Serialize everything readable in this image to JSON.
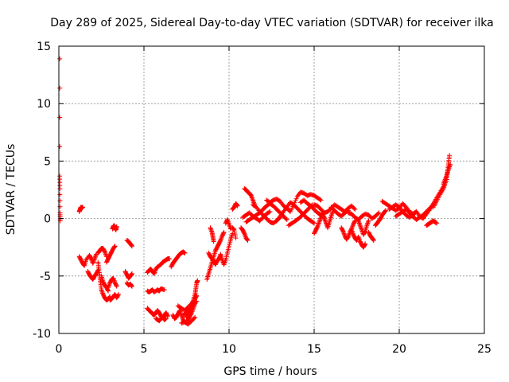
{
  "chart_data": {
    "type": "scatter",
    "title": "Day 289 of 2025, Sidereal Day-to-day VTEC variation (SDTVAR) for receiver ilka",
    "xlabel": "GPS time / hours",
    "ylabel": "SDTVAR / TECUs",
    "xlim": [
      0,
      25
    ],
    "ylim": [
      -10,
      15
    ],
    "xticks": [
      0,
      5,
      10,
      15,
      20,
      25
    ],
    "yticks": [
      -10,
      -5,
      0,
      5,
      10,
      15
    ],
    "grid": true,
    "marker": "plus",
    "color": "#ff0000",
    "segments": [
      {
        "x": [
          0.05,
          0.05,
          0.06,
          0.07,
          0.08
        ],
        "y": [
          13.9,
          3.7,
          2.6,
          0.5,
          -0.2
        ]
      },
      {
        "x": [
          1.2,
          1.25,
          1.3,
          1.35,
          1.4
        ],
        "y": [
          0.6,
          0.8,
          1.0,
          0.9,
          1.0
        ]
      },
      {
        "x": [
          1.2,
          1.3,
          1.4,
          1.5,
          1.6,
          1.8,
          1.9,
          2.0,
          2.1,
          2.2
        ],
        "y": [
          -3.3,
          -3.6,
          -3.9,
          -4.1,
          -3.6,
          -3.2,
          -3.5,
          -3.9,
          -3.5,
          -3.1
        ]
      },
      {
        "x": [
          1.7,
          1.8,
          1.9,
          2.0,
          2.1,
          2.2,
          2.3
        ],
        "y": [
          -4.6,
          -4.9,
          -5.1,
          -5.3,
          -5.0,
          -4.8,
          -4.5
        ]
      },
      {
        "x": [
          2.3,
          2.4,
          2.5,
          2.6,
          2.7,
          2.8
        ],
        "y": [
          -3.0,
          -2.8,
          -2.6,
          -2.6,
          -2.9,
          -3.3
        ]
      },
      {
        "x": [
          2.3,
          2.35,
          2.4,
          2.45,
          2.5,
          2.6,
          2.7,
          2.8,
          2.9,
          3.0
        ],
        "y": [
          -3.8,
          -4.4,
          -5.0,
          -5.6,
          -6.2,
          -6.6,
          -6.9,
          -7.1,
          -7.0,
          -6.8
        ]
      },
      {
        "x": [
          2.5,
          2.6,
          2.7,
          2.8,
          2.9
        ],
        "y": [
          -5.0,
          -5.5,
          -5.8,
          -6.0,
          -6.3
        ]
      },
      {
        "x": [
          2.9,
          3.0,
          3.1,
          3.2,
          3.3,
          3.4
        ],
        "y": [
          -6.0,
          -5.6,
          -5.3,
          -5.2,
          -5.6,
          -5.9
        ]
      },
      {
        "x": [
          3.0,
          3.1,
          3.2,
          3.3,
          3.4,
          3.5
        ],
        "y": [
          -7.1,
          -7.0,
          -6.8,
          -6.6,
          -6.9,
          -6.6
        ]
      },
      {
        "x": [
          2.8,
          2.9,
          3.0,
          3.1,
          3.2,
          3.3
        ],
        "y": [
          -3.8,
          -3.5,
          -3.2,
          -2.9,
          -2.6,
          -2.4
        ]
      },
      {
        "x": [
          3.15,
          3.2,
          3.25,
          3.3,
          3.35,
          3.4
        ],
        "y": [
          -0.9,
          -0.7,
          -0.6,
          -0.8,
          -1.0,
          -0.7
        ]
      },
      {
        "x": [
          4.0,
          4.1,
          4.2,
          4.3
        ],
        "y": [
          -1.9,
          -2.0,
          -2.2,
          -2.4
        ]
      },
      {
        "x": [
          3.9,
          4.0,
          4.1,
          4.2,
          4.3
        ],
        "y": [
          -4.6,
          -4.9,
          -5.2,
          -5.0,
          -4.8
        ]
      },
      {
        "x": [
          4.0,
          4.1,
          4.2,
          4.3
        ],
        "y": [
          -5.6,
          -5.8,
          -5.7,
          -5.9
        ]
      },
      {
        "x": [
          5.2,
          5.3,
          5.4,
          5.5,
          5.6,
          5.7,
          5.8,
          6.0,
          6.1,
          6.2,
          6.3,
          6.4,
          6.5
        ],
        "y": [
          -4.7,
          -4.5,
          -4.4,
          -4.6,
          -4.8,
          -4.4,
          -4.2,
          -4.0,
          -3.8,
          -3.7,
          -3.6,
          -3.5,
          -3.5
        ]
      },
      {
        "x": [
          5.2,
          5.3,
          5.4,
          5.5,
          5.6,
          5.8,
          5.9,
          6.0,
          6.2
        ],
        "y": [
          -6.3,
          -6.4,
          -6.3,
          -6.2,
          -6.4,
          -6.2,
          -6.3,
          -6.1,
          -6.2
        ]
      },
      {
        "x": [
          5.2,
          5.3,
          5.4,
          5.5,
          5.6,
          5.7,
          5.8,
          5.9,
          6.0,
          6.1,
          6.2,
          6.3,
          6.4
        ],
        "y": [
          -7.8,
          -8.0,
          -8.1,
          -8.3,
          -8.4,
          -8.2,
          -8.0,
          -8.2,
          -8.5,
          -8.6,
          -8.4,
          -8.2,
          -8.5
        ]
      },
      {
        "x": [
          5.7,
          5.8,
          5.9,
          6.0,
          6.1,
          6.2,
          6.3
        ],
        "y": [
          -8.7,
          -8.8,
          -8.9,
          -8.7,
          -8.6,
          -8.8,
          -8.7
        ]
      },
      {
        "x": [
          6.6,
          6.7,
          6.8,
          6.9,
          7.0,
          7.1,
          7.2,
          7.3,
          7.4
        ],
        "y": [
          -4.2,
          -3.9,
          -3.7,
          -3.5,
          -3.3,
          -3.1,
          -3.0,
          -2.9,
          -3.0
        ]
      },
      {
        "x": [
          6.7,
          6.8,
          6.9,
          7.0,
          7.1,
          7.2,
          7.3,
          7.4,
          7.5,
          7.6,
          7.7,
          7.8,
          7.9,
          8.0
        ],
        "y": [
          -8.4,
          -8.7,
          -8.6,
          -8.3,
          -8.0,
          -8.4,
          -8.8,
          -9.0,
          -9.1,
          -8.8,
          -8.5,
          -8.2,
          -7.8,
          -7.4
        ]
      },
      {
        "x": [
          7.0,
          7.2,
          7.4,
          7.6,
          7.8,
          8.0,
          8.1
        ],
        "y": [
          -7.6,
          -7.8,
          -8.0,
          -7.7,
          -7.4,
          -7.0,
          -6.7
        ]
      },
      {
        "x": [
          7.3,
          7.5,
          7.7,
          7.9,
          8.1
        ],
        "y": [
          -8.4,
          -8.2,
          -7.9,
          -7.5,
          -7.2
        ]
      },
      {
        "x": [
          7.5,
          7.6,
          7.7,
          7.8,
          7.9,
          8.0,
          8.05,
          8.1,
          8.15
        ],
        "y": [
          -8.6,
          -8.4,
          -8.1,
          -7.6,
          -7.1,
          -6.6,
          -6.1,
          -5.6,
          -5.4
        ]
      },
      {
        "x": [
          7.2,
          7.4,
          7.6,
          7.8,
          8.0
        ],
        "y": [
          -9.1,
          -9.0,
          -9.2,
          -8.9,
          -8.6
        ]
      },
      {
        "x": [
          8.7,
          8.8,
          8.9,
          9.0,
          9.1,
          9.2,
          9.3,
          9.4,
          9.5,
          9.6,
          9.7
        ],
        "y": [
          -5.3,
          -4.8,
          -4.3,
          -3.8,
          -3.3,
          -2.8,
          -2.5,
          -2.2,
          -1.9,
          -1.5,
          -1.2
        ]
      },
      {
        "x": [
          8.8,
          8.9,
          9.0,
          9.1,
          9.2,
          9.3,
          9.4,
          9.5
        ],
        "y": [
          -3.0,
          -3.3,
          -3.5,
          -3.7,
          -4.0,
          -3.7,
          -3.5,
          -3.2
        ]
      },
      {
        "x": [
          8.9,
          9.0,
          9.05,
          9.1
        ],
        "y": [
          -0.8,
          -1.2,
          -1.6,
          -2.0
        ]
      },
      {
        "x": [
          9.5,
          9.6,
          9.7,
          9.8,
          9.9,
          10.0,
          10.1,
          10.2
        ],
        "y": [
          -3.1,
          -3.6,
          -4.0,
          -3.6,
          -3.0,
          -2.4,
          -1.8,
          -1.3
        ]
      },
      {
        "x": [
          9.8,
          9.9,
          10.0,
          10.1
        ],
        "y": [
          -0.4,
          -0.1,
          -0.5,
          -0.9
        ]
      },
      {
        "x": [
          10.2,
          10.3,
          10.4,
          10.5
        ],
        "y": [
          0.8,
          1.0,
          1.3,
          1.1
        ]
      },
      {
        "x": [
          10.2,
          10.3,
          10.4
        ],
        "y": [
          -0.8,
          -1.0,
          -1.7
        ]
      },
      {
        "x": [
          10.7,
          10.8,
          10.9,
          11.0,
          11.1
        ],
        "y": [
          -0.8,
          -1.0,
          -1.3,
          -1.7,
          -1.9
        ]
      },
      {
        "x": [
          10.9,
          11.0,
          11.1,
          11.2,
          11.3,
          11.4,
          11.5
        ],
        "y": [
          2.6,
          2.5,
          2.3,
          2.2,
          2.0,
          1.6,
          1.2
        ]
      },
      {
        "x": [
          10.8,
          11.0,
          11.2,
          11.4,
          11.6,
          11.8,
          12.0,
          12.2,
          12.4
        ],
        "y": [
          0.1,
          0.3,
          0.5,
          0.2,
          0.0,
          -0.2,
          0.1,
          0.4,
          0.6
        ]
      },
      {
        "x": [
          11.0,
          11.2,
          11.4,
          11.6,
          11.8,
          12.0,
          12.2,
          12.4,
          12.6,
          12.8,
          13.0,
          13.2,
          13.4
        ],
        "y": [
          -0.3,
          -0.1,
          0.1,
          0.3,
          0.5,
          0.8,
          1.1,
          1.3,
          1.1,
          0.8,
          0.5,
          0.2,
          -0.1
        ]
      },
      {
        "x": [
          11.4,
          11.6,
          11.8,
          12.0,
          12.2,
          12.4,
          12.6,
          12.8,
          13.0
        ],
        "y": [
          1.2,
          1.0,
          0.6,
          0.3,
          0.0,
          -0.3,
          -0.4,
          -0.2,
          0.1
        ]
      },
      {
        "x": [
          12.2,
          12.4,
          12.6,
          12.8,
          13.0,
          13.2,
          13.4,
          13.6,
          13.8,
          14.0,
          14.2,
          14.4,
          14.6,
          14.8,
          15.0,
          15.2,
          15.4
        ],
        "y": [
          1.6,
          1.4,
          1.6,
          1.7,
          1.5,
          1.1,
          0.9,
          0.6,
          1.2,
          1.9,
          2.3,
          2.2,
          2.0,
          2.1,
          2.0,
          1.8,
          1.6
        ]
      },
      {
        "x": [
          12.8,
          13.0,
          13.2,
          13.4,
          13.6,
          13.8,
          14.0,
          14.2,
          14.4,
          14.6,
          14.8,
          15.0
        ],
        "y": [
          -0.2,
          0.2,
          0.6,
          1.0,
          1.4,
          1.2,
          0.9,
          0.6,
          0.3,
          0.0,
          -0.2,
          -0.4
        ]
      },
      {
        "x": [
          13.5,
          13.7,
          13.9,
          14.1,
          14.3,
          14.5,
          14.7,
          14.9
        ],
        "y": [
          -0.6,
          -0.4,
          -0.2,
          0.0,
          0.3,
          0.6,
          0.9,
          1.2
        ]
      },
      {
        "x": [
          14.2,
          14.4,
          14.6,
          14.8,
          15.0,
          15.2,
          15.4,
          15.6
        ],
        "y": [
          1.4,
          1.6,
          1.3,
          1.1,
          0.8,
          0.5,
          0.3,
          0.1
        ]
      },
      {
        "x": [
          15.0,
          15.1,
          15.2,
          15.3,
          15.4,
          15.5
        ],
        "y": [
          -1.3,
          -1.0,
          -0.7,
          -0.3,
          0.1,
          0.5
        ]
      },
      {
        "x": [
          15.0,
          15.2,
          15.4,
          15.6,
          15.8,
          16.0,
          16.2,
          16.4,
          16.6,
          16.8,
          17.0,
          17.2,
          17.4
        ],
        "y": [
          1.2,
          1.1,
          0.8,
          0.5,
          0.6,
          0.9,
          1.2,
          1.0,
          0.8,
          0.6,
          0.9,
          1.1,
          0.8
        ]
      },
      {
        "x": [
          15.5,
          15.6,
          15.7,
          15.8,
          15.9,
          16.0,
          16.1
        ],
        "y": [
          0.4,
          0.0,
          -0.4,
          -0.8,
          -0.3,
          0.2,
          0.6
        ]
      },
      {
        "x": [
          16.0,
          16.2,
          16.4,
          16.6,
          16.8,
          17.0
        ],
        "y": [
          1.0,
          0.7,
          0.4,
          0.2,
          0.5,
          0.7
        ]
      },
      {
        "x": [
          16.6,
          16.7,
          16.8,
          16.9,
          17.0,
          17.1,
          17.2,
          17.3,
          17.4
        ],
        "y": [
          -0.8,
          -1.1,
          -1.5,
          -1.8,
          -1.6,
          -1.2,
          -0.9,
          -0.5,
          -0.2
        ]
      },
      {
        "x": [
          17.0,
          17.2,
          17.4,
          17.6,
          17.8,
          18.0,
          18.2,
          18.4,
          18.6,
          18.8
        ],
        "y": [
          0.5,
          0.4,
          0.1,
          -0.1,
          0.2,
          0.4,
          0.3,
          0.0,
          0.2,
          0.5
        ]
      },
      {
        "x": [
          17.2,
          17.3,
          17.4,
          17.5,
          17.6,
          17.7,
          17.8,
          17.9,
          18.0
        ],
        "y": [
          -1.0,
          -1.4,
          -1.7,
          -1.9,
          -1.6,
          -2.0,
          -2.3,
          -2.5,
          -2.2
        ]
      },
      {
        "x": [
          17.6,
          17.7,
          17.8,
          17.9,
          18.0,
          18.1,
          18.2
        ],
        "y": [
          -0.2,
          -0.6,
          -1.0,
          -1.4,
          -1.1,
          -0.6,
          -0.2
        ]
      },
      {
        "x": [
          18.2,
          18.3,
          18.4,
          18.5
        ],
        "y": [
          -1.2,
          -1.5,
          -1.7,
          -1.9
        ]
      },
      {
        "x": [
          18.6,
          18.7,
          18.8,
          18.9,
          19.0,
          19.1,
          19.2
        ],
        "y": [
          -0.6,
          -0.4,
          -0.2,
          0.0,
          0.3,
          0.5,
          0.7
        ]
      },
      {
        "x": [
          19.0,
          19.2,
          19.4,
          19.6,
          19.8,
          20.0,
          20.2,
          20.4,
          20.6,
          20.8,
          21.0
        ],
        "y": [
          1.5,
          1.3,
          1.1,
          0.9,
          0.7,
          0.9,
          1.3,
          1.0,
          0.6,
          0.4,
          0.6
        ]
      },
      {
        "x": [
          19.4,
          19.6,
          19.8,
          20.0,
          20.2,
          20.4,
          20.6,
          20.8,
          21.0,
          21.2,
          21.4,
          21.6
        ],
        "y": [
          0.8,
          1.0,
          1.2,
          1.0,
          0.6,
          0.3,
          0.1,
          0.3,
          0.6,
          0.2,
          0.0,
          0.4
        ]
      },
      {
        "x": [
          19.8,
          20.0,
          20.2,
          20.4,
          20.6,
          20.8,
          21.0,
          21.2,
          21.4,
          21.6,
          21.8,
          22.0
        ],
        "y": [
          0.2,
          0.4,
          0.6,
          0.8,
          0.5,
          0.2,
          -0.1,
          0.1,
          0.3,
          0.6,
          0.9,
          1.2
        ]
      },
      {
        "x": [
          21.6,
          21.7,
          21.8,
          21.9,
          22.0,
          22.1,
          22.2
        ],
        "y": [
          -0.6,
          -0.5,
          -0.4,
          -0.3,
          -0.2,
          -0.3,
          -0.4
        ]
      },
      {
        "x": [
          21.6,
          21.8,
          22.0,
          22.2,
          22.4,
          22.6,
          22.8
        ],
        "y": [
          0.4,
          0.8,
          1.3,
          1.8,
          2.3,
          2.8,
          3.4
        ]
      },
      {
        "x": [
          22.0,
          22.2,
          22.4,
          22.6,
          22.7,
          22.8,
          22.85,
          22.9,
          22.95
        ],
        "y": [
          1.0,
          1.5,
          2.1,
          2.6,
          3.1,
          3.7,
          4.3,
          4.9,
          5.5
        ]
      },
      {
        "x": [
          22.6,
          22.7,
          22.8,
          22.9,
          23.0
        ],
        "y": [
          3.0,
          3.4,
          3.8,
          4.3,
          4.7
        ]
      }
    ]
  }
}
